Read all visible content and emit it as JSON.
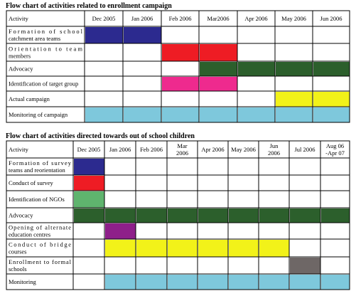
{
  "colors": {
    "blue": "#2c2a8f",
    "red": "#ee1c24",
    "darkgreen": "#2c5f2c",
    "pink": "#ee2a8e",
    "yellow": "#f2f219",
    "lightblue": "#7ec8dc",
    "green": "#5fb46e",
    "purple": "#8e1f8a",
    "gray": "#6e6766"
  },
  "table1": {
    "title": "Flow chart of activities related to enrollment campaign",
    "activity_header": "Activity",
    "periods": [
      "Dec 2005",
      "Jan 2006",
      "Feb 2006",
      "Mar2006",
      "Apr 2006",
      "May 2006",
      "Jun 2006"
    ],
    "rows": [
      {
        "label": [
          "Formation of school",
          "catchment area teams"
        ],
        "active": [
          0,
          1
        ],
        "color": "blue"
      },
      {
        "label": [
          "Orientation to team",
          "members"
        ],
        "active": [
          2,
          3
        ],
        "color": "red"
      },
      {
        "label": [
          "Advocacy"
        ],
        "active": [
          3,
          4,
          5,
          6
        ],
        "color": "darkgreen"
      },
      {
        "label": [
          "Identification of target group"
        ],
        "active": [
          2,
          3
        ],
        "color": "pink"
      },
      {
        "label": [
          "Actual campaign"
        ],
        "active": [
          5,
          6
        ],
        "color": "yellow"
      },
      {
        "label": [
          "Monitoring of campaign"
        ],
        "active": [
          0,
          1,
          2,
          3,
          4,
          5,
          6
        ],
        "color": "lightblue"
      }
    ]
  },
  "table2": {
    "title": "Flow chart of activities directed towards out of school children",
    "activity_header": "Activity",
    "periods": [
      [
        "Dec 2005"
      ],
      [
        "Jan 2006"
      ],
      [
        "Feb 2006"
      ],
      [
        "Mar",
        "2006"
      ],
      [
        "Apr 2006"
      ],
      [
        "May 2006"
      ],
      [
        "Jun",
        "2006"
      ],
      [
        "Jul 2006"
      ],
      [
        "Aug 06",
        "-Apr 07"
      ]
    ],
    "rows": [
      {
        "label": [
          "Formation of survey",
          "teams and reorientation"
        ],
        "active": [
          0
        ],
        "color": "blue"
      },
      {
        "label": [
          "Conduct of survey"
        ],
        "active": [
          0
        ],
        "color": "red"
      },
      {
        "label": [
          "Identification of NGOs"
        ],
        "active": [
          0
        ],
        "color": "green"
      },
      {
        "label": [
          "Advocacy"
        ],
        "active": [
          0,
          1,
          2,
          3,
          4,
          5,
          6,
          7,
          8
        ],
        "color": "darkgreen"
      },
      {
        "label": [
          "Opening of alternate",
          "education centres"
        ],
        "active": [
          1
        ],
        "color": "purple"
      },
      {
        "label": [
          "Conduct of bridge",
          "courses"
        ],
        "active": [
          1,
          2,
          3,
          4,
          5,
          6
        ],
        "color": "yellow"
      },
      {
        "label": [
          "Enrollment to formal",
          "schools"
        ],
        "active": [
          7
        ],
        "color": "gray"
      },
      {
        "label": [
          "Monitoring"
        ],
        "active": [
          1,
          2,
          3,
          4,
          5,
          6,
          7,
          8
        ],
        "color": "lightblue"
      }
    ]
  }
}
